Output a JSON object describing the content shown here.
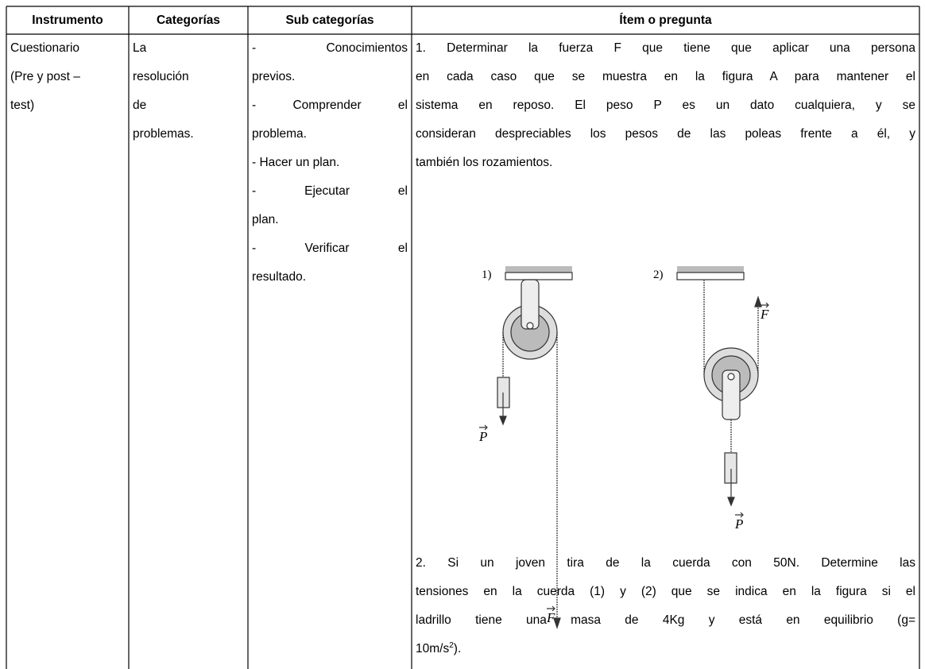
{
  "table": {
    "header": [
      "Instrumento",
      "Categorías",
      "Sub categorías",
      "Ítem o pregunta"
    ],
    "rows": [
      {
        "instrumento": [
          "Cuestionario",
          "(Pre y post –",
          "test)"
        ],
        "categorias": [
          "La",
          "resolución",
          "de",
          "problemas."
        ],
        "subcategorias": [
          [
            "- Conocimientos",
            "previos."
          ],
          [
            "- Comprender el",
            "problema."
          ],
          [
            "- Hacer un plan."
          ],
          [
            "- Ejecutar el",
            "plan."
          ],
          [
            "- Verificar el",
            "resultado."
          ]
        ],
        "item": {
          "question_1": [
            "1. Determinar la fuerza F que tiene que aplicar una persona",
            "en cada caso que se muestra en la figura A para mantener el",
            "sistema en reposo. El peso P es un dato cualquiera, y se",
            "consideran despreciables los pesos de las poleas frente a él, y",
            "también los rozamientos."
          ],
          "figure": {
            "labels": [
              "1)",
              "2)"
            ],
            "force": "F",
            "weight": "P"
          },
          "question_2": {
            "lines": [
              "2. Si un joven tira de la cuerda con 50N.  Determine las",
              "tensiones en la cuerda (1) y (2) que se indica en la figura si el",
              "ladrillo tiene una masa de 4Kg y está en equilibrio (g="
            ],
            "last": {
              "text": "10m/s",
              "sup": "2",
              "after": ")."
            }
          }
        }
      }
    ]
  }
}
